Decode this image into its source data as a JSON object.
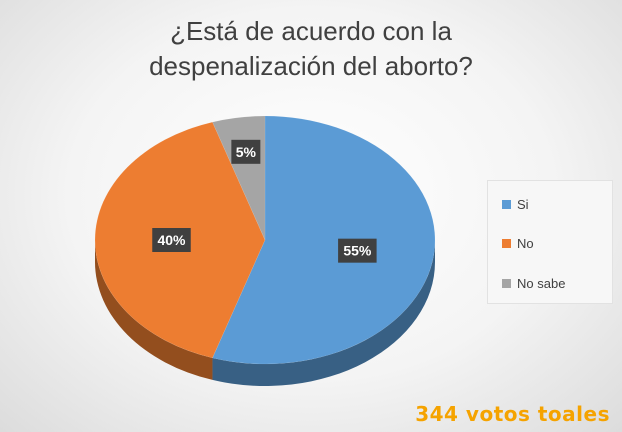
{
  "chart_data": {
    "type": "pie",
    "title_lines": [
      "¿Está de acuerdo con la",
      "despenalización del aborto?"
    ],
    "categories": [
      "Si",
      "No",
      "No sabe"
    ],
    "values": [
      55,
      40,
      5
    ],
    "data_labels": [
      "55%",
      "40%",
      "5%"
    ],
    "colors": [
      "#5b9bd5",
      "#ed7d31",
      "#a5a5a5"
    ],
    "legend_position": "right",
    "style": "3d"
  },
  "footer": {
    "text": "344 votos toales",
    "color": "#f5a300"
  }
}
